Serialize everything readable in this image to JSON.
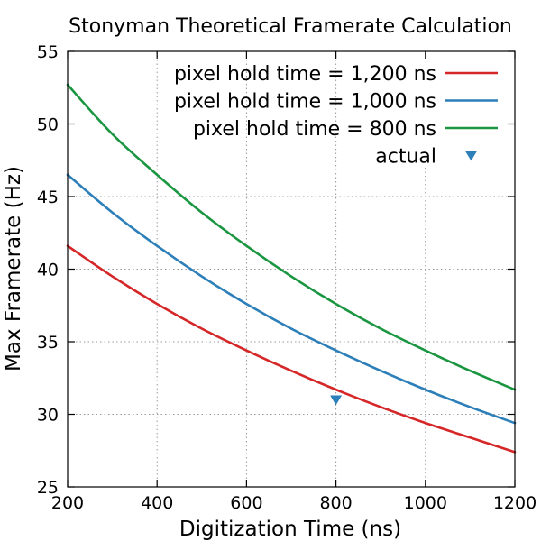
{
  "chart_data": {
    "type": "line",
    "title": "Stonyman Theoretical Framerate Calculation",
    "xlabel": "Digitization Time (ns)",
    "ylabel": "Max Framerate (Hz)",
    "xlim": [
      200,
      1200
    ],
    "ylim": [
      25,
      55
    ],
    "xticks": [
      200,
      400,
      600,
      800,
      1000,
      1200
    ],
    "yticks": [
      25,
      30,
      35,
      40,
      45,
      50,
      55
    ],
    "grid": true,
    "legend_position": "top-right",
    "series": [
      {
        "name": "pixel hold time = 1,200 ns",
        "color": "#d62728",
        "x": [
          200,
          300,
          400,
          500,
          600,
          700,
          800,
          900,
          1000,
          1100,
          1200
        ],
        "y": [
          41.6,
          39.5,
          37.6,
          35.9,
          34.4,
          33.0,
          31.7,
          30.5,
          29.4,
          28.4,
          27.4
        ]
      },
      {
        "name": "pixel hold time = 1,000 ns",
        "color": "#2c7fb8",
        "x": [
          200,
          300,
          400,
          500,
          600,
          700,
          800,
          900,
          1000,
          1100,
          1200
        ],
        "y": [
          46.5,
          43.9,
          41.6,
          39.5,
          37.6,
          35.9,
          34.4,
          33.0,
          31.7,
          30.5,
          29.4
        ]
      },
      {
        "name": "pixel hold time = 800 ns",
        "color": "#1a9641",
        "x": [
          200,
          300,
          400,
          500,
          600,
          700,
          800,
          900,
          1000,
          1100,
          1200
        ],
        "y": [
          52.7,
          49.3,
          46.5,
          43.9,
          41.6,
          39.5,
          37.6,
          35.9,
          34.4,
          33.0,
          31.7
        ]
      }
    ],
    "points": {
      "name": "actual",
      "color": "#2c7fb8",
      "marker": "triangle-down",
      "x": [
        800
      ],
      "y": [
        31.0
      ]
    }
  }
}
